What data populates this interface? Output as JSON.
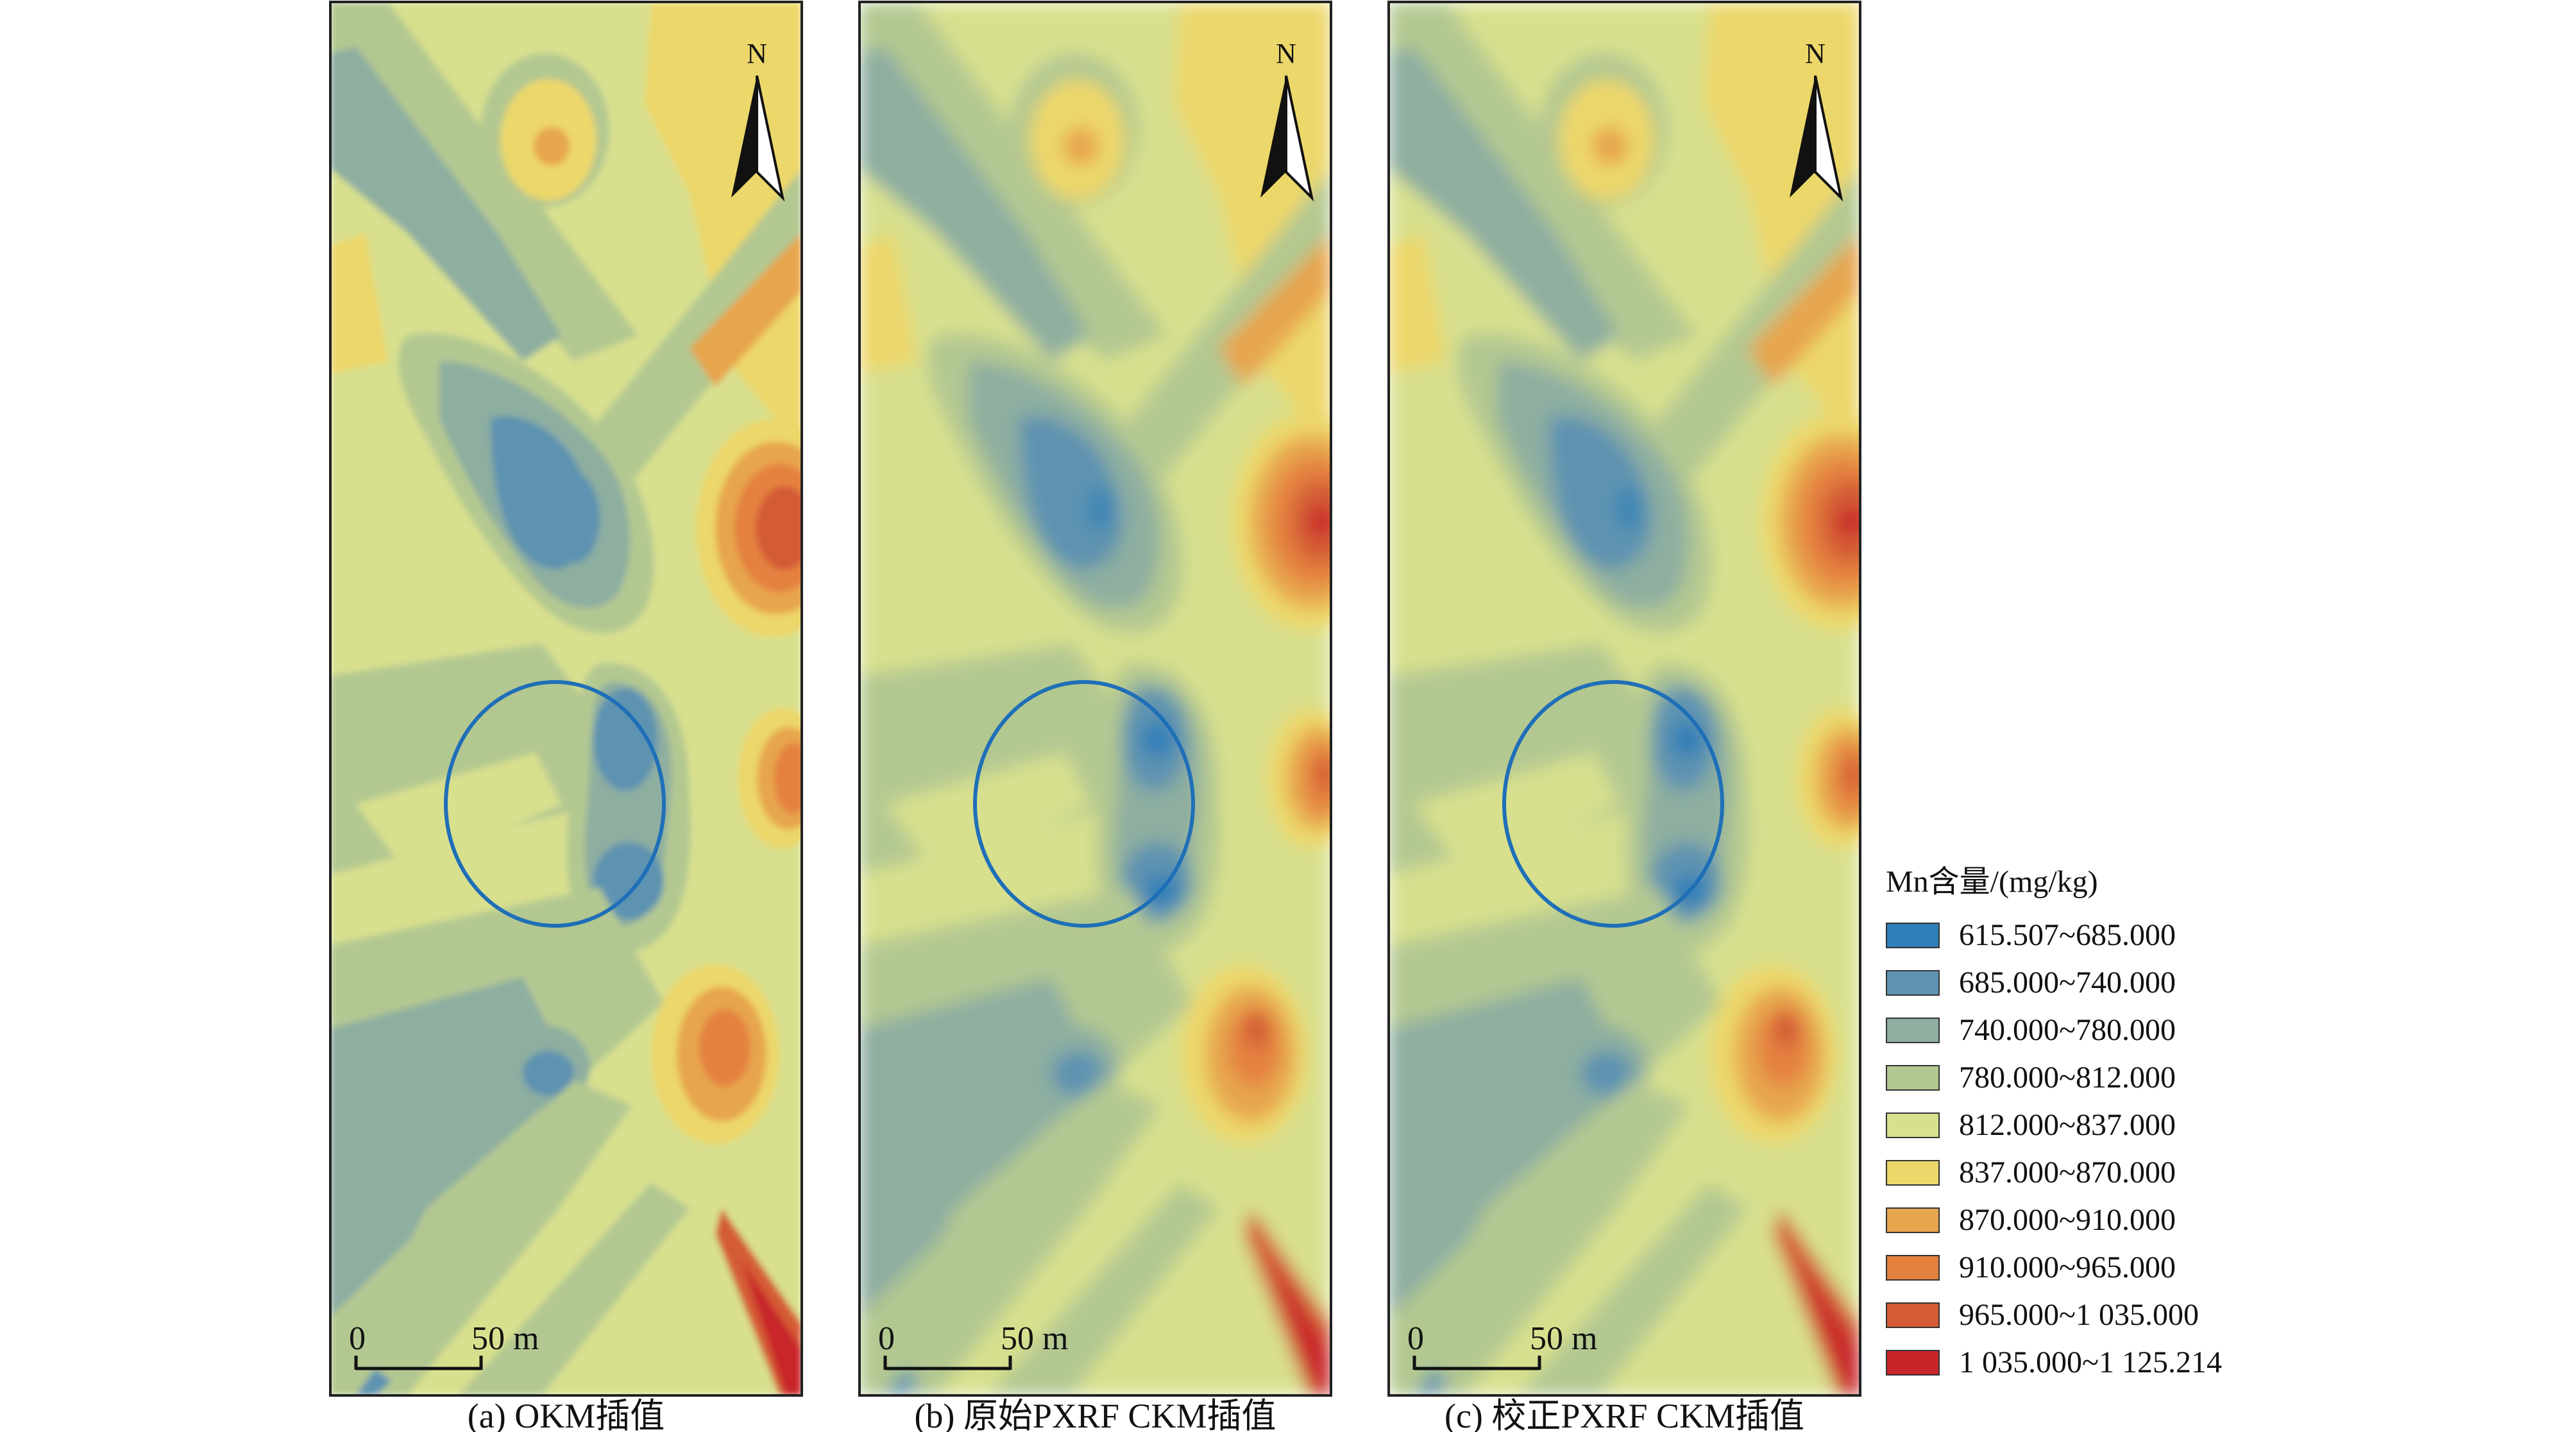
{
  "panels": [
    {
      "caption": "(a) OKM插值",
      "north_label": "N",
      "scale": {
        "zero": "0",
        "distance": "50 m"
      },
      "variant": "okm"
    },
    {
      "caption": "(b) 原始PXRF CKM插值",
      "north_label": "N",
      "scale": {
        "zero": "0",
        "distance": "50 m"
      },
      "variant": "raw"
    },
    {
      "caption": "(c) 校正PXRF CKM插值",
      "north_label": "N",
      "scale": {
        "zero": "0",
        "distance": "50 m"
      },
      "variant": "corrected"
    }
  ],
  "legend": {
    "title": "Mn含量/(mg/kg)",
    "classes": [
      {
        "label": "615.507~685.000",
        "color": "#2e7fb8"
      },
      {
        "label": "685.000~740.000",
        "color": "#5d93b1"
      },
      {
        "label": "740.000~780.000",
        "color": "#8eaea0"
      },
      {
        "label": "780.000~812.000",
        "color": "#b3c891"
      },
      {
        "label": "812.000~837.000",
        "color": "#d8e08e"
      },
      {
        "label": "837.000~870.000",
        "color": "#ecd76a"
      },
      {
        "label": "870.000~910.000",
        "color": "#e7a54e"
      },
      {
        "label": "910.000~965.000",
        "color": "#e4813f"
      },
      {
        "label": "965.000~1 035.000",
        "color": "#d45c34"
      },
      {
        "label": "1 035.000~1 125.214",
        "color": "#c8252a"
      }
    ]
  },
  "highlight_circle_color": "#1f6fb8"
}
